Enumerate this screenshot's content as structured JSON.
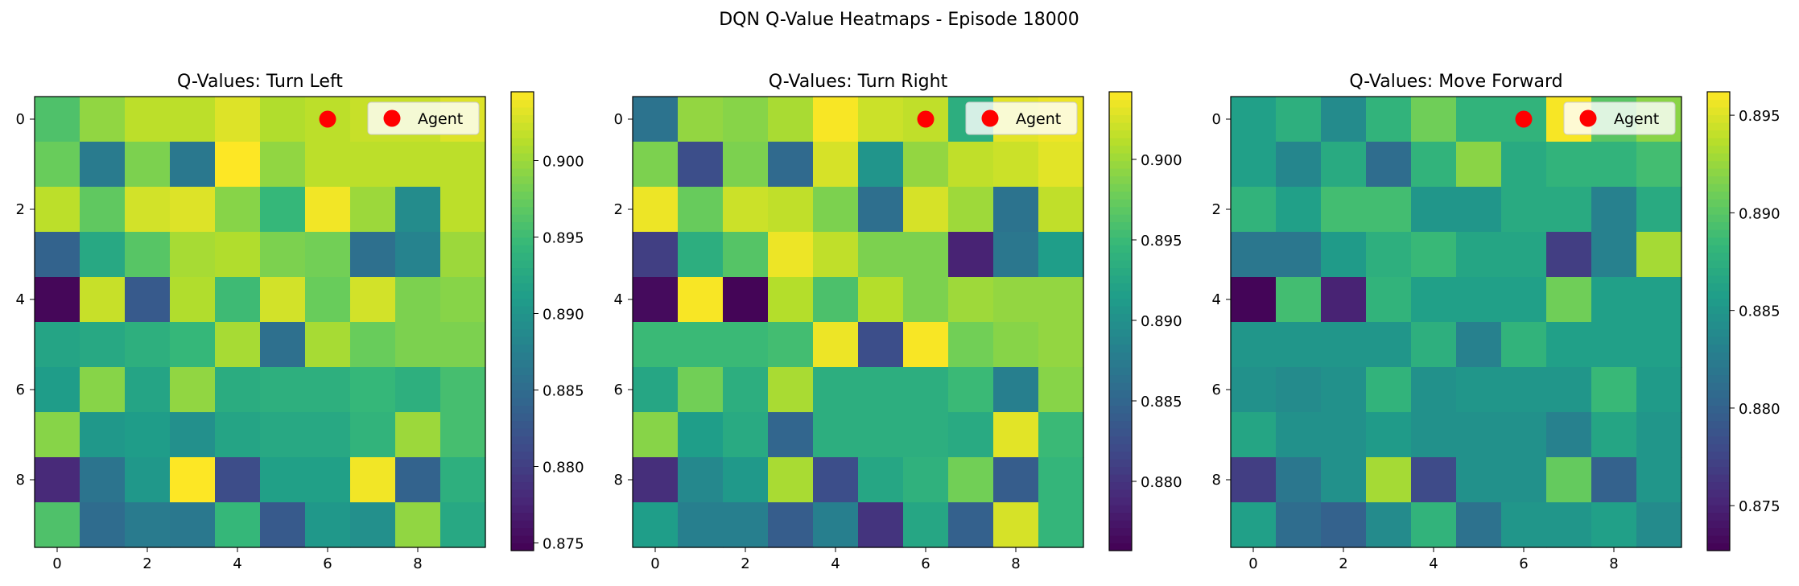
{
  "figure": {
    "suptitle": "DQN Q-Value Heatmaps - Episode 18000"
  },
  "chart_data": [
    {
      "type": "heatmap",
      "title": "Q-Values: Turn Left",
      "xlabel": "",
      "ylabel": "",
      "x_ticks": [
        0,
        2,
        4,
        6,
        8
      ],
      "y_ticks": [
        0,
        2,
        4,
        6,
        8
      ],
      "colormap": "viridis",
      "vmin": 0.8745,
      "vmax": 0.9045,
      "colorbar_ticks": [
        0.875,
        0.88,
        0.885,
        0.89,
        0.895,
        0.9
      ],
      "colorbar_tick_labels": [
        "0.875",
        "0.880",
        "0.885",
        "0.890",
        "0.895",
        "0.900"
      ],
      "legend": {
        "label": "Agent",
        "position": "top-right"
      },
      "agent": {
        "col": 6,
        "row": 0,
        "color": "#ff0000"
      },
      "grid": [
        [
          0.896,
          0.8995,
          0.9015,
          0.9015,
          0.903,
          0.901,
          0.9015,
          0.902,
          0.902,
          0.903
        ],
        [
          0.8975,
          0.887,
          0.8985,
          0.8865,
          0.9045,
          0.8995,
          0.9015,
          0.9015,
          0.9015,
          0.9015
        ],
        [
          0.9015,
          0.897,
          0.9025,
          0.903,
          0.899,
          0.8945,
          0.904,
          0.9,
          0.889,
          0.9015
        ],
        [
          0.884,
          0.8925,
          0.8965,
          0.9005,
          0.901,
          0.8985,
          0.898,
          0.8855,
          0.888,
          0.9
        ],
        [
          0.875,
          0.902,
          0.883,
          0.901,
          0.895,
          0.9025,
          0.8975,
          0.9025,
          0.8985,
          0.899
        ],
        [
          0.892,
          0.8925,
          0.8935,
          0.8945,
          0.9005,
          0.8855,
          0.9005,
          0.8975,
          0.8985,
          0.8985
        ],
        [
          0.891,
          0.899,
          0.892,
          0.8995,
          0.893,
          0.8935,
          0.8935,
          0.8945,
          0.8935,
          0.8955
        ],
        [
          0.899,
          0.8905,
          0.891,
          0.8895,
          0.892,
          0.8925,
          0.8925,
          0.894,
          0.9,
          0.8955
        ],
        [
          0.878,
          0.886,
          0.8905,
          0.9045,
          0.8815,
          0.8915,
          0.8915,
          0.904,
          0.884,
          0.8935
        ],
        [
          0.896,
          0.885,
          0.887,
          0.8865,
          0.8945,
          0.883,
          0.8905,
          0.8895,
          0.8995,
          0.8925
        ]
      ]
    },
    {
      "type": "heatmap",
      "title": "Q-Values: Turn Right",
      "xlabel": "",
      "ylabel": "",
      "x_ticks": [
        0,
        2,
        4,
        6,
        8
      ],
      "y_ticks": [
        0,
        2,
        4,
        6,
        8
      ],
      "colormap": "viridis",
      "vmin": 0.8757,
      "vmax": 0.9042,
      "colorbar_ticks": [
        0.88,
        0.885,
        0.89,
        0.895,
        0.9
      ],
      "colorbar_tick_labels": [
        "0.880",
        "0.885",
        "0.890",
        "0.895",
        "0.900"
      ],
      "legend": {
        "label": "Agent",
        "position": "top-right"
      },
      "agent": {
        "col": 6,
        "row": 0,
        "color": "#ff0000"
      },
      "grid": [
        [
          0.8865,
          0.8995,
          0.899,
          0.9005,
          0.904,
          0.902,
          0.9015,
          0.8935,
          0.903,
          0.9035
        ],
        [
          0.8985,
          0.8825,
          0.8985,
          0.8855,
          0.9025,
          0.8905,
          0.8995,
          0.9015,
          0.902,
          0.903
        ],
        [
          0.9035,
          0.8975,
          0.902,
          0.9015,
          0.8985,
          0.886,
          0.9025,
          0.9,
          0.8865,
          0.9015
        ],
        [
          0.881,
          0.8935,
          0.8965,
          0.9035,
          0.9015,
          0.8985,
          0.8985,
          0.8785,
          0.887,
          0.8915
        ],
        [
          0.8765,
          0.904,
          0.876,
          0.901,
          0.896,
          0.901,
          0.8985,
          0.9,
          0.8995,
          0.8995
        ],
        [
          0.895,
          0.895,
          0.895,
          0.8955,
          0.9035,
          0.8825,
          0.904,
          0.898,
          0.899,
          0.8995
        ],
        [
          0.8925,
          0.898,
          0.8935,
          0.9005,
          0.8935,
          0.8935,
          0.8935,
          0.895,
          0.888,
          0.899
        ],
        [
          0.899,
          0.8915,
          0.893,
          0.885,
          0.8935,
          0.8935,
          0.8935,
          0.893,
          0.903,
          0.895
        ],
        [
          0.8795,
          0.889,
          0.891,
          0.9005,
          0.8825,
          0.8925,
          0.894,
          0.898,
          0.884,
          0.8945
        ],
        [
          0.8915,
          0.888,
          0.888,
          0.884,
          0.888,
          0.88,
          0.8925,
          0.8845,
          0.9025,
          0.8945
        ]
      ]
    },
    {
      "type": "heatmap",
      "title": "Q-Values: Move Forward",
      "xlabel": "",
      "ylabel": "",
      "x_ticks": [
        0,
        2,
        4,
        6,
        8
      ],
      "y_ticks": [
        0,
        2,
        4,
        6,
        8
      ],
      "colormap": "viridis",
      "vmin": 0.8727,
      "vmax": 0.8962,
      "colorbar_ticks": [
        0.875,
        0.88,
        0.885,
        0.89,
        0.895
      ],
      "colorbar_tick_labels": [
        "0.875",
        "0.880",
        "0.885",
        "0.890",
        "0.895"
      ],
      "legend": {
        "label": "Agent",
        "position": "top-right"
      },
      "agent": {
        "col": 6,
        "row": 0,
        "color": "#ff0000"
      },
      "grid": [
        [
          0.886,
          0.8875,
          0.884,
          0.888,
          0.891,
          0.888,
          0.888,
          0.896,
          0.89,
          0.892
        ],
        [
          0.886,
          0.8835,
          0.887,
          0.881,
          0.888,
          0.892,
          0.887,
          0.888,
          0.888,
          0.889
        ],
        [
          0.888,
          0.886,
          0.889,
          0.889,
          0.885,
          0.885,
          0.887,
          0.887,
          0.883,
          0.887
        ],
        [
          0.882,
          0.882,
          0.8855,
          0.8875,
          0.8885,
          0.8865,
          0.8865,
          0.877,
          0.883,
          0.893
        ],
        [
          0.873,
          0.889,
          0.875,
          0.888,
          0.886,
          0.886,
          0.886,
          0.891,
          0.886,
          0.886
        ],
        [
          0.885,
          0.885,
          0.885,
          0.885,
          0.8875,
          0.883,
          0.888,
          0.886,
          0.886,
          0.886
        ],
        [
          0.8845,
          0.884,
          0.8845,
          0.888,
          0.8845,
          0.885,
          0.885,
          0.885,
          0.8885,
          0.8855
        ],
        [
          0.8865,
          0.8845,
          0.8845,
          0.8855,
          0.8845,
          0.8845,
          0.8845,
          0.883,
          0.8865,
          0.885
        ],
        [
          0.877,
          0.882,
          0.8845,
          0.893,
          0.878,
          0.8845,
          0.8845,
          0.8905,
          0.88,
          0.885
        ],
        [
          0.886,
          0.881,
          0.88,
          0.884,
          0.888,
          0.8815,
          0.885,
          0.885,
          0.886,
          0.884
        ]
      ]
    }
  ]
}
